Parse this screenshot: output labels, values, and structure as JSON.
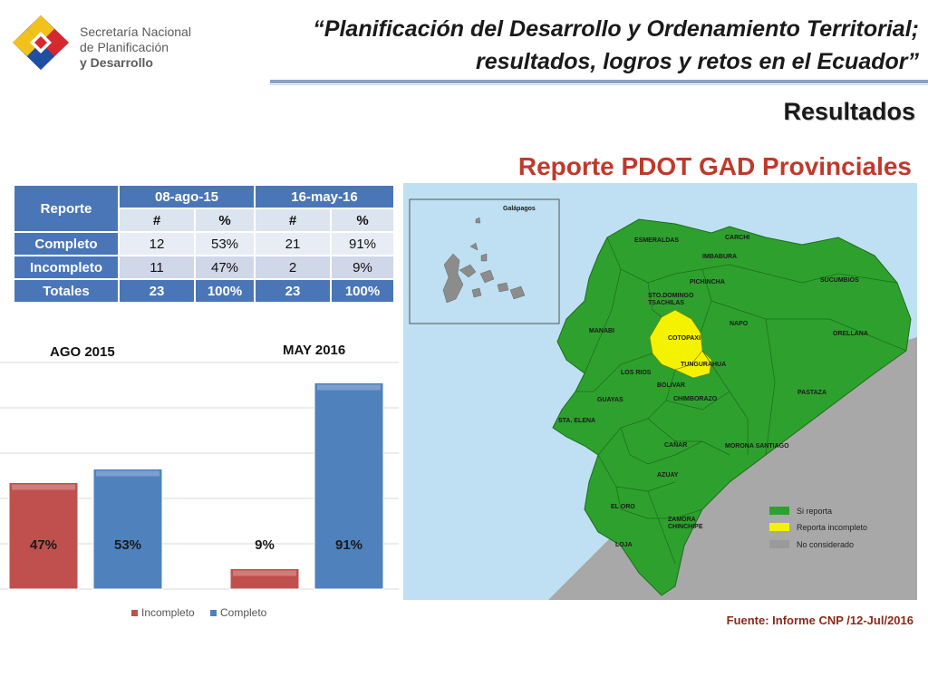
{
  "header": {
    "org_line1": "Secretaría Nacional",
    "org_line2": "de Planificación",
    "org_line3": "y Desarrollo",
    "title_line1": "“Planificación del Desarrollo y Ordenamiento Territorial;",
    "title_line2": "resultados, logros y retos en el Ecuador”",
    "section": "Resultados",
    "report_title": "Reporte PDOT GAD Provinciales"
  },
  "table": {
    "corner": "Reporte",
    "period1": "08-ago-15",
    "period2": "16-may-16",
    "sub": [
      "#",
      "%",
      "#",
      "%"
    ],
    "rows": [
      {
        "label": "Completo",
        "cells": [
          "12",
          "53%",
          "21",
          "91%"
        ]
      },
      {
        "label": "Incompleto",
        "cells": [
          "11",
          "47%",
          "2",
          "9%"
        ]
      },
      {
        "label": "Totales",
        "cells": [
          "23",
          "100%",
          "23",
          "100%"
        ]
      }
    ]
  },
  "chart_data": {
    "type": "bar",
    "title": "",
    "groups": [
      "AGO 2015",
      "MAY 2016"
    ],
    "series": [
      {
        "name": "Incompleto",
        "values": [
          47,
          9
        ],
        "color": "#c0504d"
      },
      {
        "name": "Completo",
        "values": [
          53,
          91
        ],
        "color": "#4f81bd"
      }
    ],
    "data_labels": [
      "47%",
      "53%",
      "9%",
      "91%"
    ],
    "ylim": [
      0,
      100
    ],
    "grid": true,
    "legend": "bottom"
  },
  "map": {
    "galapagos_label": "Galápagos",
    "provinces": [
      {
        "name": "ESMERALDAS",
        "status": "si"
      },
      {
        "name": "CARCHI",
        "status": "si"
      },
      {
        "name": "IMBABURA",
        "status": "si"
      },
      {
        "name": "SUCUMBIOS",
        "status": "si"
      },
      {
        "name": "PICHINCHA",
        "status": "si"
      },
      {
        "name": "STO.DOMINGO",
        "status": "si"
      },
      {
        "name": "TSACHILAS",
        "status": "si"
      },
      {
        "name": "NAPO",
        "status": "si"
      },
      {
        "name": "ORELLANA",
        "status": "si"
      },
      {
        "name": "MANABI",
        "status": "si"
      },
      {
        "name": "COTOPAXI",
        "status": "incompleto"
      },
      {
        "name": "TUNGURAHUA",
        "status": "incompleto"
      },
      {
        "name": "LOS RIOS",
        "status": "si"
      },
      {
        "name": "BOLIVAR",
        "status": "si"
      },
      {
        "name": "PASTAZA",
        "status": "si"
      },
      {
        "name": "GUAYAS",
        "status": "si"
      },
      {
        "name": "CHIMBORAZO",
        "status": "si"
      },
      {
        "name": "STA. ELENA",
        "status": "si"
      },
      {
        "name": "CAÑAR",
        "status": "si"
      },
      {
        "name": "MORONA SANTIAGO",
        "status": "si"
      },
      {
        "name": "AZUAY",
        "status": "si"
      },
      {
        "name": "EL ORO",
        "status": "si"
      },
      {
        "name": "ZAMORA",
        "status": "si"
      },
      {
        "name": "CHINCHIPE",
        "status": "si"
      },
      {
        "name": "LOJA",
        "status": "si"
      }
    ],
    "legend": [
      {
        "label": "Si reporta",
        "color": "#2ea02e"
      },
      {
        "label": "Reporta incompleto",
        "color": "#f5f200"
      },
      {
        "label": "No considerado",
        "color": "#9a9a9a"
      }
    ]
  },
  "source": "Fuente: Informe CNP /12-Jul/2016"
}
